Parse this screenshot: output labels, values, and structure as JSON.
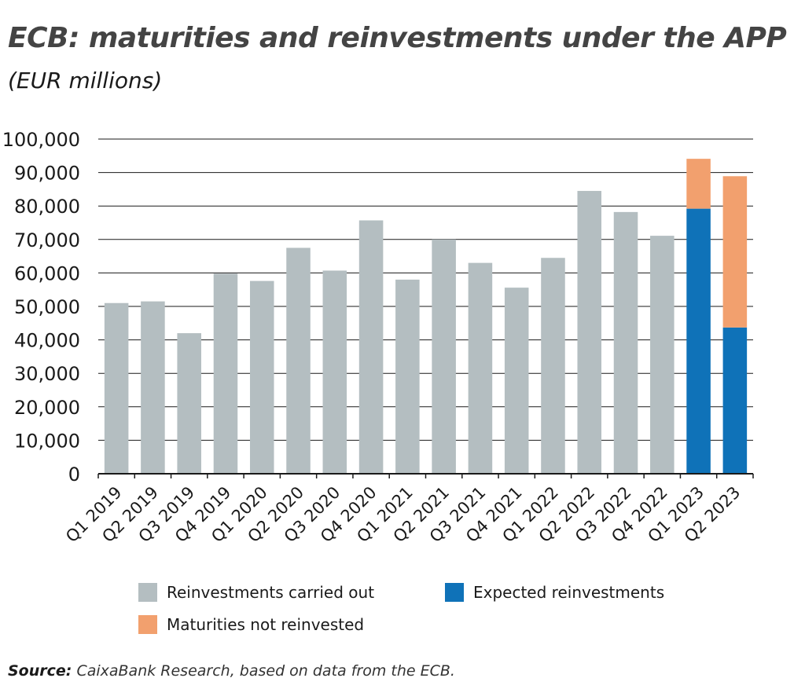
{
  "title": "ECB: maturities and reinvestments under the APP",
  "subtitle": "(EUR millions)",
  "source_label": "Source:",
  "source_text": "CaixaBank Research, based on data from the ECB.",
  "colors": {
    "carried_out": "#b4bec1",
    "expected": "#0f72b8",
    "not_reinvested": "#f2a06e",
    "grid": "#1a1a1a"
  },
  "chart_data": {
    "type": "bar",
    "stacked": true,
    "categories": [
      "Q1 2019",
      "Q2 2019",
      "Q3 2019",
      "Q4 2019",
      "Q1 2020",
      "Q2 2020",
      "Q3 2020",
      "Q4 2020",
      "Q1 2021",
      "Q2 2021",
      "Q3 2021",
      "Q4 2021",
      "Q1 2022",
      "Q2 2022",
      "Q3 2022",
      "Q4 2022",
      "Q1 2023",
      "Q2 2023"
    ],
    "series": [
      {
        "name": "Reinvestments carried out",
        "color": "#b4bec1",
        "values": [
          51000,
          51500,
          42000,
          59800,
          57600,
          67500,
          60700,
          75700,
          58000,
          70000,
          63000,
          55600,
          64500,
          84500,
          78200,
          71100,
          0,
          0
        ]
      },
      {
        "name": "Expected reinvestments",
        "color": "#0f72b8",
        "values": [
          0,
          0,
          0,
          0,
          0,
          0,
          0,
          0,
          0,
          0,
          0,
          0,
          0,
          0,
          0,
          0,
          79200,
          43700
        ]
      },
      {
        "name": "Maturities not reinvested",
        "color": "#f2a06e",
        "values": [
          0,
          0,
          0,
          0,
          0,
          0,
          0,
          0,
          0,
          0,
          0,
          0,
          0,
          0,
          0,
          0,
          14900,
          45200
        ]
      }
    ],
    "y_ticks": [
      "0",
      "10,000",
      "20,000",
      "30,000",
      "40,000",
      "50,000",
      "60,000",
      "70,000",
      "80,000",
      "90,000",
      "100,000"
    ],
    "ylim": [
      0,
      100000
    ],
    "grid": true,
    "legend_position": "bottom"
  },
  "legend": [
    {
      "label": "Reinvestments carried out",
      "color": "#b4bec1"
    },
    {
      "label": "Expected reinvestments",
      "color": "#0f72b8"
    },
    {
      "label": "Maturities not reinvested",
      "color": "#f2a06e"
    }
  ]
}
